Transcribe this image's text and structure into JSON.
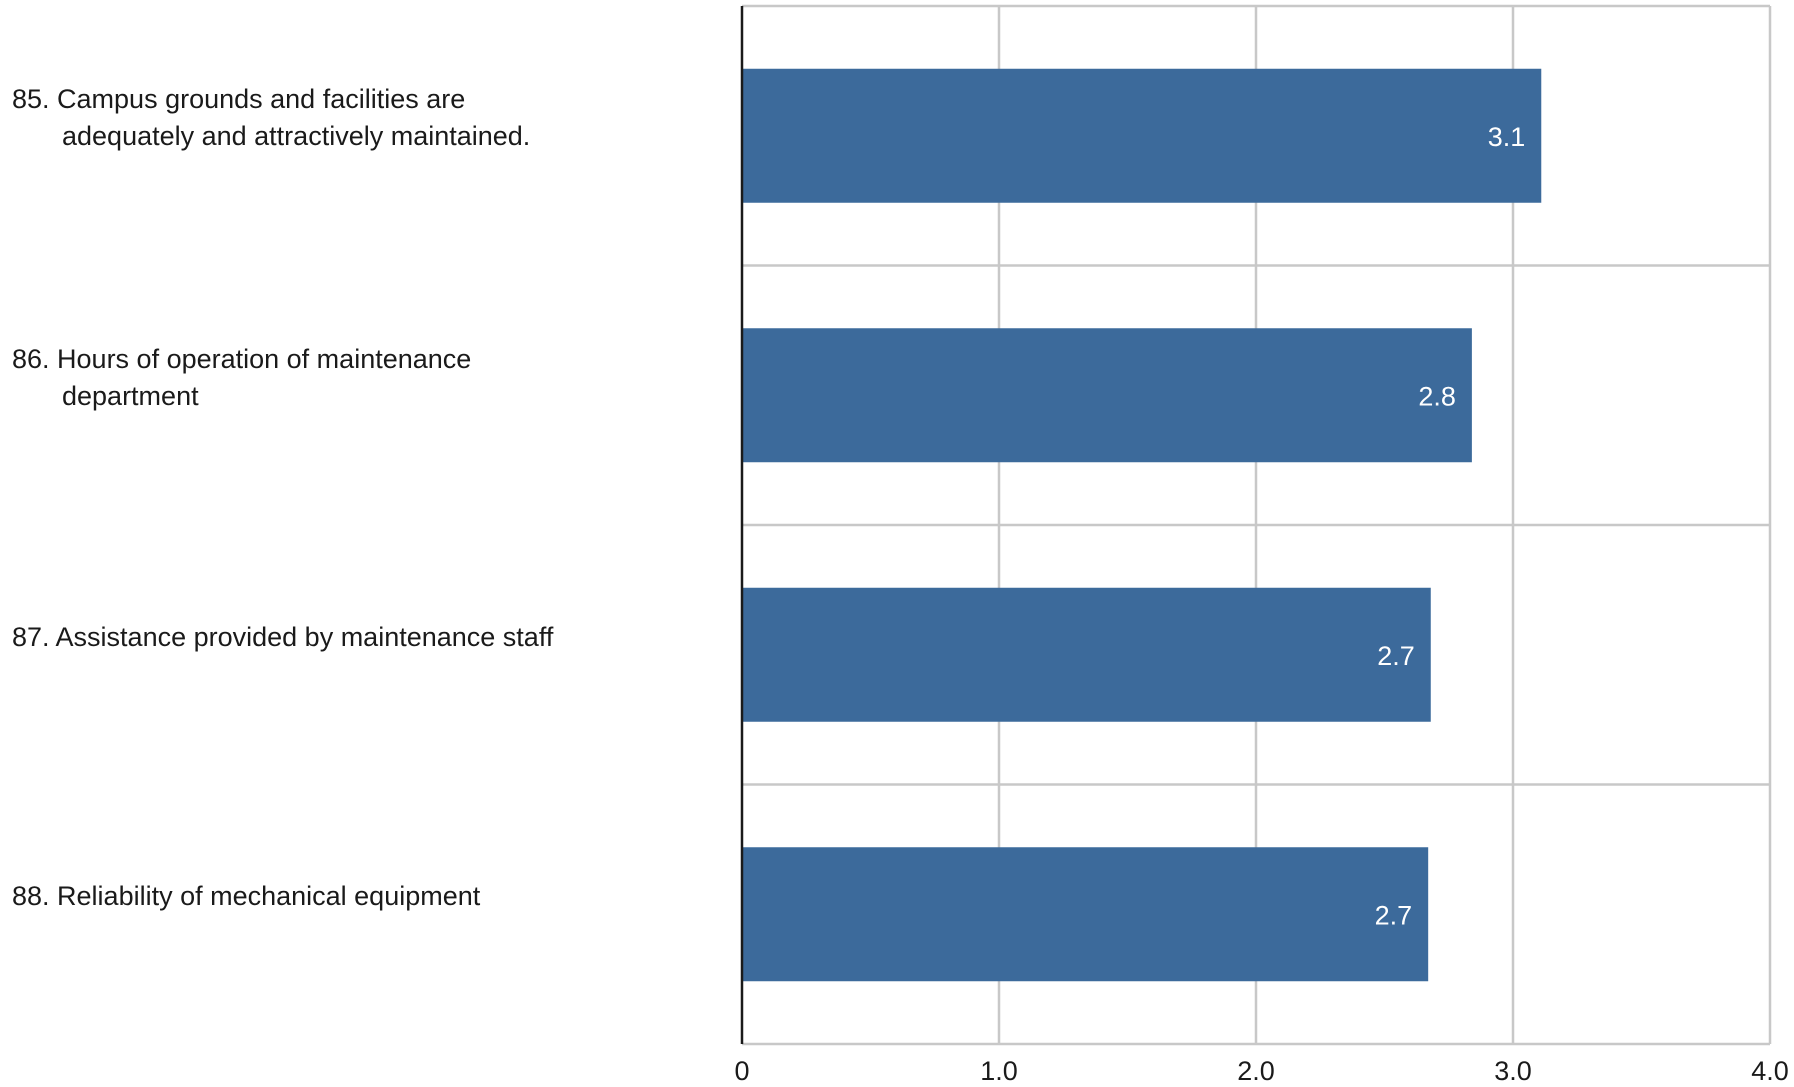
{
  "chart_data": {
    "type": "bar",
    "orientation": "horizontal",
    "categories": [
      "85. Campus grounds and facilities are\nadequately and attractively maintained.",
      "86. Hours of operation of maintenance\ndepartment",
      "87. Assistance provided by maintenance staff",
      "88. Reliability of mechanical equipment"
    ],
    "values": [
      3.11,
      2.84,
      2.68,
      2.67
    ],
    "value_labels": [
      "3.1",
      "2.8",
      "2.7",
      "2.7"
    ],
    "xlim": [
      0,
      4
    ],
    "xticks": [
      0,
      1,
      2,
      3,
      4
    ],
    "xtick_labels": [
      "0",
      "1.0",
      "2.0",
      "3.0",
      "4.0"
    ],
    "grid": true,
    "bar_color": "#3c6a9b",
    "grid_color": "#c8c8c8",
    "axis_color": "#1a1a1a"
  }
}
